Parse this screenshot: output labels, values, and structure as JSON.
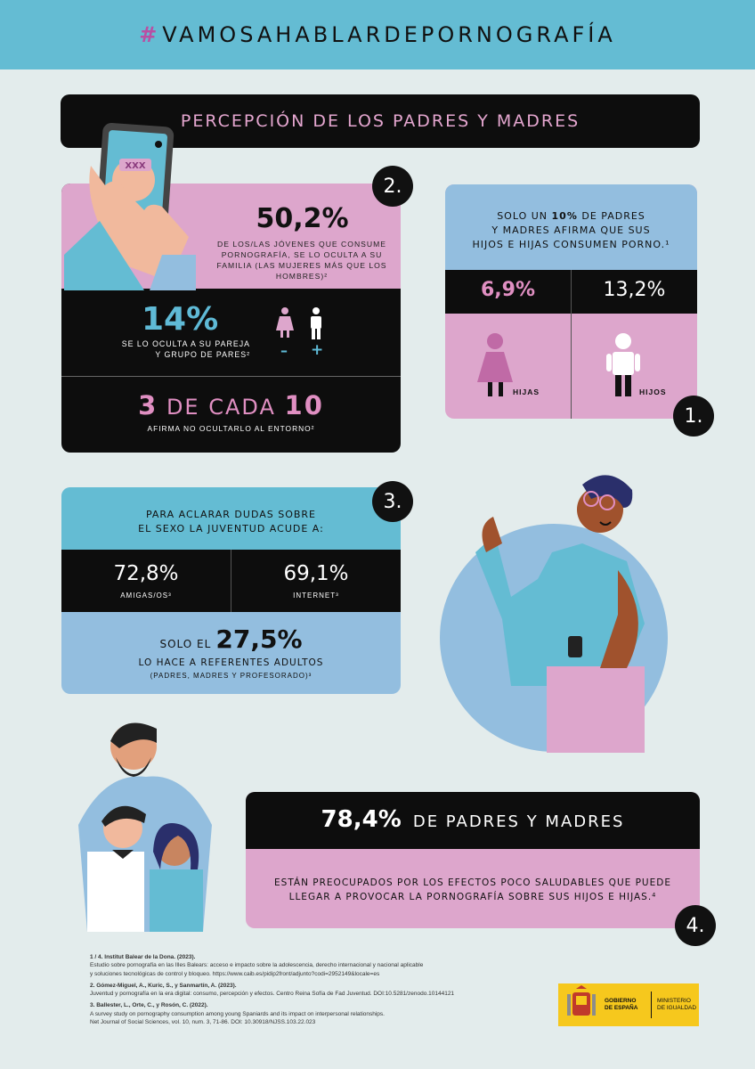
{
  "header": {
    "hash": "#",
    "hashtag": "VAMOSAHABLARDEPORNOGRAFÍA"
  },
  "title": "PERCEPCIÓN DE LOS PADRES Y MADRES",
  "section2": {
    "badge": "2.",
    "phone_label": "XXX",
    "pct": "50,2%",
    "text": "DE LOS/LAS JÓVENES QUE CONSUME PORNOGRAFÍA, SE LO OCULTA A SU FAMILIA (LAS MUJERES MÁS QUE LOS HOMBRES)²",
    "pct2": "14%",
    "text2a": "SE LO OCULTA A SU PAREJA",
    "text2b": "Y GRUPO DE PARES²",
    "minus": "–",
    "plus": "+",
    "ratio_num1": "3",
    "ratio_mid": "DE CADA",
    "ratio_num2": "10",
    "text3": "AFIRMA NO OCULTARLO AL ENTORNO²"
  },
  "section1": {
    "badge": "1.",
    "intro_a": "SOLO UN ",
    "intro_bold": "10%",
    "intro_b": " DE PADRES",
    "intro_c": "Y MADRES AFIRMA QUE SUS",
    "intro_d": "HIJOS E HIJAS CONSUMEN PORNO.¹",
    "val_hijas": "6,9%",
    "val_hijos": "13,2%",
    "label_hijas": "HIJAS",
    "label_hijos": "HIJOS"
  },
  "section3": {
    "badge": "3.",
    "intro_a": "PARA ACLARAR DUDAS SOBRE",
    "intro_b": "EL SEXO LA JUVENTUD ACUDE A:",
    "val_left": "72,8%",
    "lab_left": "AMIGAS/OS³",
    "val_right": "69,1%",
    "lab_right": "INTERNET³",
    "solo_el": "SOLO EL",
    "val_adult": "27,5%",
    "text_a": "LO HACE A REFERENTES ADULTOS",
    "text_b": "(PADRES, MADRES Y PROFESORADO)³"
  },
  "section4": {
    "badge": "4.",
    "pct": "78,4%",
    "head": "DE PADRES Y MADRES",
    "text_a": "ESTÁN PREOCUPADOS POR LOS EFECTOS POCO SALUDABLES QUE PUEDE",
    "text_b": "LLEGAR A PROVOCAR LA PORNOGRAFÍA SOBRE SUS HIJOS E HIJAS.⁴"
  },
  "references": [
    {
      "head": "1 / 4. Institut Balear de la Dona. (2023).",
      "lines": [
        "Estudio sobre pornografía en las Illes Balears: acceso e impacto sobre la adolescencia, derecho internacional y nacional aplicable",
        "y soluciones tecnológicas de control y bloqueo. https://www.caib.es/pidip2front/adjunto?codi=2952149&locale=es"
      ]
    },
    {
      "head": "2. Gómez-Miguel, A., Kuric, S., y Sanmartín, A. (2023).",
      "lines": [
        "Juventud y pornografía en la era digital: consumo, percepción y efectos. Centro Reina Sofía de Fad Juventud. DOI:10.5281/zenodo.10144121"
      ]
    },
    {
      "head": "3. Ballester, L., Orte, C., y Rosón, C. (2022).",
      "lines": [
        "A survey study on pornography consumption among young Spaniards and its impact on interpersonal relationships.",
        "Net Journal of Social Sciences, vol. 10, num. 3, 71-86. DOI: 10.30918/NJSS.103.22.023"
      ]
    }
  ],
  "logo": {
    "left": "GOBIERNO DE ESPAÑA",
    "right": "MINISTERIO DE IGUALDAD"
  },
  "colors": {
    "teal": "#64bcd3",
    "pink": "#dda6cc",
    "lightblue": "#93bedf",
    "black": "#0d0d0d",
    "bg": "#e3ecec"
  }
}
